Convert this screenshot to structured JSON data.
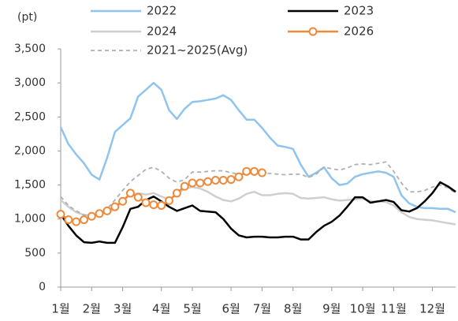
{
  "chart_data": {
    "type": "line",
    "y_label": "(pt)",
    "categories": [
      "1월",
      null,
      null,
      null,
      "2월",
      null,
      null,
      null,
      "3월",
      null,
      null,
      null,
      null,
      "4월",
      null,
      null,
      null,
      "5월",
      null,
      null,
      null,
      null,
      "6월",
      null,
      null,
      null,
      "7월",
      null,
      null,
      null,
      "8월",
      null,
      null,
      null,
      null,
      "9월",
      null,
      null,
      null,
      "10월",
      null,
      null,
      null,
      "11월",
      null,
      null,
      null,
      null,
      "12월",
      null,
      null,
      null
    ],
    "ylim": [
      0,
      3500
    ],
    "yticks": [
      0,
      {
        "value": 500,
        "label": "500"
      },
      {
        "value": 1000,
        "label": "1,000"
      },
      {
        "value": 1500,
        "label": "1,500"
      },
      {
        "value": 2000,
        "label": "2,000"
      },
      {
        "value": 2500,
        "label": "2,500"
      },
      {
        "value": 3000,
        "label": "3,000"
      },
      {
        "value": 3500,
        "label": "3,500"
      }
    ],
    "grid": false,
    "series": [
      {
        "name": "2022",
        "color": "#8fc4ee",
        "style": "solid",
        "marker": false,
        "values": [
          2350,
          2100,
          1950,
          1820,
          1650,
          1580,
          1900,
          2280,
          2380,
          2480,
          2800,
          2900,
          3000,
          2900,
          2600,
          2470,
          2620,
          2720,
          2730,
          2750,
          2770,
          2820,
          2750,
          2600,
          2460,
          2460,
          2340,
          2200,
          2080,
          2060,
          2030,
          1800,
          1620,
          1680,
          1760,
          1600,
          1500,
          1520,
          1620,
          1660,
          1680,
          1700,
          1680,
          1620,
          1350,
          1230,
          1180,
          1160,
          1160,
          1150,
          1150,
          1100
        ]
      },
      {
        "name": "2023",
        "color": "#000000",
        "style": "solid",
        "marker": false,
        "values": [
          1070,
          900,
          760,
          660,
          650,
          670,
          650,
          650,
          880,
          1150,
          1180,
          1280,
          1330,
          1260,
          1180,
          1120,
          1160,
          1200,
          1120,
          1110,
          1100,
          1000,
          860,
          760,
          730,
          740,
          740,
          730,
          730,
          740,
          740,
          700,
          700,
          810,
          900,
          960,
          1050,
          1180,
          1320,
          1320,
          1240,
          1260,
          1280,
          1250,
          1130,
          1110,
          1160,
          1260,
          1380,
          1540,
          1480,
          1400
        ]
      },
      {
        "name": "2024",
        "color": "#cfcfcf",
        "style": "solid",
        "marker": false,
        "values": [
          1280,
          1180,
          1100,
          1060,
          1050,
          1080,
          1100,
          1150,
          1280,
          1350,
          1380,
          1360,
          1380,
          1330,
          1290,
          1360,
          1450,
          1470,
          1450,
          1400,
          1330,
          1280,
          1260,
          1300,
          1370,
          1400,
          1350,
          1350,
          1370,
          1380,
          1370,
          1310,
          1300,
          1310,
          1320,
          1290,
          1270,
          1280,
          1290,
          1300,
          1260,
          1260,
          1250,
          1200,
          1100,
          1030,
          1000,
          990,
          980,
          960,
          940,
          920
        ]
      },
      {
        "name": "2026",
        "color": "#ed8a3c",
        "style": "solid",
        "marker": true,
        "values": [
          1070,
          990,
          960,
          990,
          1040,
          1080,
          1120,
          1180,
          1260,
          1380,
          1320,
          1240,
          1210,
          1200,
          1270,
          1380,
          1480,
          1530,
          1530,
          1550,
          1570,
          1570,
          1580,
          1620,
          1700,
          1700,
          1680,
          null,
          null,
          null,
          null,
          null,
          null,
          null,
          null,
          null,
          null,
          null,
          null,
          null,
          null,
          null,
          null,
          null,
          null,
          null,
          null,
          null,
          null,
          null,
          null,
          null
        ]
      },
      {
        "name": "2021~2025(Avg)",
        "color": "#b0b0b0",
        "style": "dashed",
        "marker": false,
        "values": [
          1330,
          1200,
          1120,
          1060,
          1050,
          1070,
          1150,
          1280,
          1420,
          1550,
          1640,
          1730,
          1760,
          1700,
          1600,
          1540,
          1580,
          1690,
          1690,
          1700,
          1710,
          1710,
          1680,
          1660,
          1660,
          1680,
          1680,
          1670,
          1660,
          1650,
          1660,
          1660,
          1610,
          1660,
          1760,
          1740,
          1720,
          1750,
          1800,
          1810,
          1800,
          1820,
          1840,
          1700,
          1530,
          1400,
          1400,
          1420,
          1470,
          1500,
          1460,
          1380
        ]
      }
    ]
  }
}
